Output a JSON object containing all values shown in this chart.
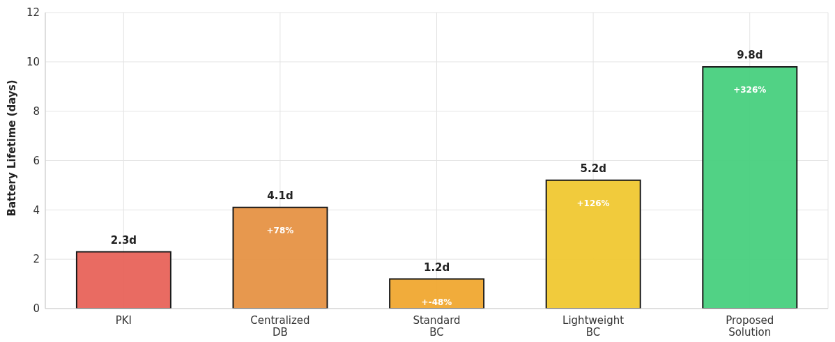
{
  "chart_data": {
    "type": "bar",
    "ylabel": "Battery Lifetime (days)",
    "categories": [
      "PKI",
      "Centralized\nDB",
      "Standard\nBC",
      "Lightweight\nBC",
      "Proposed\nSolution"
    ],
    "values": [
      2.3,
      4.1,
      1.2,
      5.2,
      9.8
    ],
    "colors": [
      "#e8635a",
      "#e69245",
      "#f0a830",
      "#f0c832",
      "#48d07e"
    ],
    "value_labels": [
      "2.3d",
      "4.1d",
      "1.2d",
      "5.2d",
      "9.8d"
    ],
    "annotations": [
      {
        "text": "+78%",
        "x": "Centralized\nDB",
        "y": 4.1
      },
      {
        "text": "+-48%",
        "x": "Standard\nBC",
        "y": 1.2
      },
      {
        "text": "+126%",
        "x": "Lightweight\nBC",
        "y": 5.2
      },
      {
        "text": "+326%",
        "x": "Proposed\nSolution",
        "y": 9.8
      }
    ],
    "ylim": [
      0,
      12
    ],
    "yticks": [
      0,
      2,
      4,
      6,
      8,
      10,
      12
    ],
    "grid": true
  }
}
